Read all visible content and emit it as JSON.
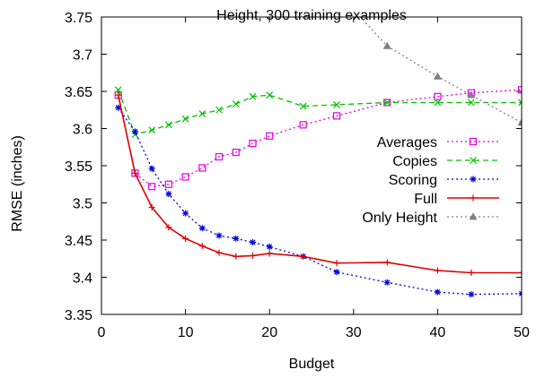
{
  "chart_data": {
    "type": "line",
    "title": "Height, 300 training examples",
    "xlabel": "Budget",
    "ylabel": "RMSE (inches)",
    "xlim": [
      0,
      50
    ],
    "ylim": [
      3.35,
      3.75
    ],
    "xticks": [
      0,
      10,
      20,
      30,
      40,
      50
    ],
    "yticks": [
      3.35,
      3.4,
      3.45,
      3.5,
      3.55,
      3.6,
      3.65,
      3.7,
      3.75
    ],
    "ytick_labels": [
      "3.35",
      "3.4",
      "3.45",
      "3.5",
      "3.55",
      "3.6",
      "3.65",
      "3.7",
      "3.75"
    ],
    "grid": false,
    "legend_position": "right",
    "series": [
      {
        "name": "Averages",
        "color": "#e000e0",
        "dash": "dotted",
        "marker": "square",
        "x": [
          2,
          4,
          6,
          8,
          10,
          12,
          14,
          16,
          18,
          20,
          24,
          28,
          34,
          40,
          44,
          50
        ],
        "y": [
          3.645,
          3.54,
          3.522,
          3.525,
          3.535,
          3.547,
          3.562,
          3.568,
          3.58,
          3.59,
          3.605,
          3.617,
          3.635,
          3.643,
          3.648,
          3.652
        ]
      },
      {
        "name": "Copies",
        "color": "#00c000",
        "dash": "dashed",
        "marker": "x",
        "x": [
          2,
          4,
          6,
          8,
          10,
          12,
          14,
          16,
          18,
          20,
          24,
          28,
          34,
          40,
          44,
          50
        ],
        "y": [
          3.652,
          3.592,
          3.598,
          3.605,
          3.613,
          3.62,
          3.625,
          3.633,
          3.643,
          3.645,
          3.63,
          3.632,
          3.635,
          3.635,
          3.635,
          3.635
        ]
      },
      {
        "name": "Scoring",
        "color": "#0000e0",
        "dash": "dotted",
        "marker": "star",
        "x": [
          2,
          4,
          6,
          8,
          10,
          12,
          14,
          16,
          18,
          20,
          24,
          28,
          34,
          40,
          44,
          50
        ],
        "y": [
          3.628,
          3.596,
          3.546,
          3.512,
          3.486,
          3.466,
          3.456,
          3.452,
          3.447,
          3.441,
          3.428,
          3.407,
          3.393,
          3.38,
          3.377,
          3.378
        ]
      },
      {
        "name": "Full",
        "color": "#e00000",
        "dash": "solid",
        "marker": "plus",
        "x": [
          2,
          4,
          6,
          8,
          10,
          12,
          14,
          16,
          18,
          20,
          24,
          28,
          34,
          40,
          44,
          50
        ],
        "y": [
          3.645,
          3.54,
          3.494,
          3.467,
          3.452,
          3.442,
          3.433,
          3.428,
          3.429,
          3.432,
          3.428,
          3.419,
          3.42,
          3.409,
          3.406,
          3.406
        ]
      },
      {
        "name": "Only Height",
        "color": "#808080",
        "dash": "dotted",
        "marker": "triangle",
        "x": [
          30,
          34,
          40,
          44,
          50
        ],
        "y": [
          3.76,
          3.711,
          3.67,
          3.645,
          3.608
        ]
      }
    ]
  }
}
